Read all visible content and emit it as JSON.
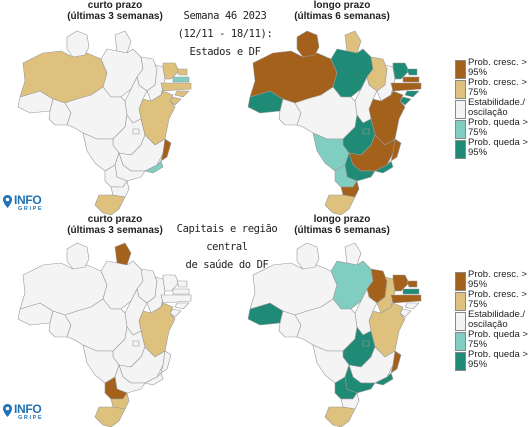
{
  "colors": {
    "increase_95": "#a3611c",
    "increase_75": "#dfc17e",
    "stable": "#f4f4f4",
    "decrease_75": "#80cdc1",
    "decrease_95": "#1f8b76",
    "border": "#999999",
    "logo_blue": "#1e73b8"
  },
  "top": {
    "center_title_lines": [
      "Semana 46 2023",
      "(12/11 - 18/11):",
      "Estados e DF"
    ],
    "left_panel_title": [
      "curto prazo",
      "(últimas 3 semanas)"
    ],
    "right_panel_title": [
      "longo prazo",
      "(últimas 6 semanas)"
    ],
    "legend": [
      {
        "color": "#a3611c",
        "label": "Prob. cresc. > 95%"
      },
      {
        "color": "#dfc17e",
        "label": "Prob. cresc. > 75%"
      },
      {
        "color": "#f4f4f4",
        "label": "Estabilidade./ oscilação"
      },
      {
        "color": "#80cdc1",
        "label": "Prob. queda > 75%"
      },
      {
        "color": "#1f8b76",
        "label": "Prob. queda > 95%"
      }
    ]
  },
  "bottom": {
    "center_title_lines": [
      "Capitais e região central",
      "de saúde do DF"
    ],
    "left_panel_title": [
      "curto prazo",
      "(últimas 3 semanas)"
    ],
    "right_panel_title": [
      "longo prazo",
      "(últimas 6 semanas)"
    ],
    "legend": [
      {
        "color": "#a3611c",
        "label": "Prob. cresc. > 95%"
      },
      {
        "color": "#dfc17e",
        "label": "Prob. cresc. > 75%"
      },
      {
        "color": "#f4f4f4",
        "label": "Estabilidade./ oscilação"
      },
      {
        "color": "#80cdc1",
        "label": "Prob. queda > 75%"
      },
      {
        "color": "#1f8b76",
        "label": "Prob. queda > 95%"
      }
    ]
  },
  "logo": {
    "main": "INFO",
    "sub": "GRIPE"
  },
  "maps": {
    "top_left": {
      "AC": "stable",
      "AM": "increase_75",
      "RR": "stable",
      "AP": "stable",
      "PA": "stable",
      "MA": "stable",
      "TO": "stable",
      "PI": "stable",
      "CE": "increase_75",
      "RN": "increase_75",
      "PB": "decrease_75",
      "PE": "increase_75",
      "AL": "increase_75",
      "SE": "increase_75",
      "BA": "increase_75",
      "RO": "stable",
      "MT": "stable",
      "MS": "stable",
      "GO": "stable",
      "DF": "stable",
      "MG": "stable",
      "ES": "increase_95",
      "RJ": "decrease_75",
      "SP": "stable",
      "PR": "stable",
      "SC": "stable",
      "RS": "increase_75"
    },
    "top_right": {
      "AC": "decrease_95",
      "AM": "increase_95",
      "RR": "increase_95",
      "AP": "increase_75",
      "PA": "decrease_95",
      "MA": "increase_75",
      "TO": "stable",
      "PI": "stable",
      "CE": "decrease_95",
      "RN": "decrease_95",
      "PB": "increase_95",
      "PE": "increase_95",
      "AL": "decrease_95",
      "SE": "decrease_95",
      "BA": "increase_95",
      "RO": "stable",
      "MT": "stable",
      "MS": "decrease_75",
      "GO": "decrease_95",
      "DF": "decrease_95",
      "MG": "increase_95",
      "ES": "increase_95",
      "RJ": "decrease_95",
      "SP": "decrease_95",
      "PR": "decrease_75",
      "SC": "increase_95",
      "RS": "increase_75"
    },
    "bottom_left": {
      "AC": "stable",
      "AM": "stable",
      "RR": "stable",
      "AP": "increase_95",
      "PA": "stable",
      "MA": "stable",
      "TO": "stable",
      "PI": "stable",
      "CE": "stable",
      "RN": "stable",
      "PB": "stable",
      "PE": "stable",
      "AL": "stable",
      "SE": "stable",
      "BA": "increase_75",
      "RO": "stable",
      "MT": "stable",
      "MS": "stable",
      "GO": "stable",
      "DF": "stable",
      "MG": "stable",
      "ES": "stable",
      "RJ": "stable",
      "SP": "stable",
      "PR": "increase_95",
      "SC": "increase_75",
      "RS": "increase_75"
    },
    "bottom_right": {
      "AC": "decrease_95",
      "AM": "stable",
      "RR": "stable",
      "AP": "stable",
      "PA": "decrease_75",
      "MA": "increase_95",
      "TO": "stable",
      "PI": "increase_75",
      "CE": "increase_95",
      "RN": "increase_95",
      "PB": "decrease_95",
      "PE": "increase_95",
      "AL": "stable",
      "SE": "stable",
      "BA": "increase_75",
      "RO": "stable",
      "MT": "stable",
      "MS": "stable",
      "GO": "decrease_95",
      "DF": "decrease_95",
      "MG": "stable",
      "ES": "increase_95",
      "RJ": "decrease_95",
      "SP": "decrease_95",
      "PR": "decrease_95",
      "SC": "stable",
      "RS": "increase_75"
    }
  }
}
